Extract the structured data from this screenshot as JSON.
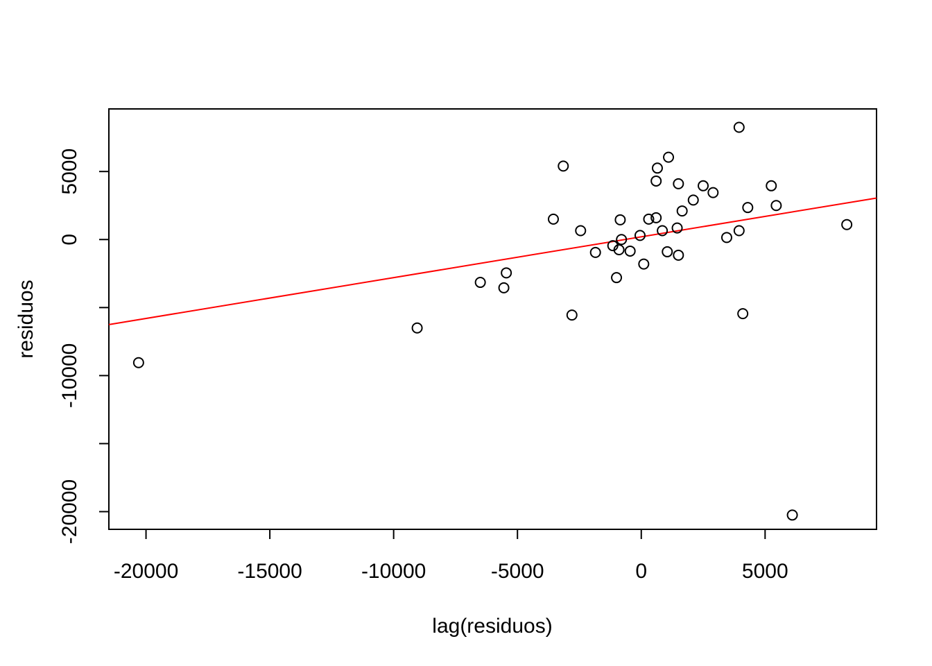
{
  "chart_data": {
    "type": "scatter",
    "title": "",
    "xlabel": "lag(residuos)",
    "ylabel": "residuos",
    "xlim": [
      -21500,
      9500
    ],
    "ylim": [
      -21300,
      9600
    ],
    "x_ticks": [
      -20000,
      -15000,
      -10000,
      -5000,
      0,
      5000
    ],
    "x_tick_labels": [
      "-20000",
      "-15000",
      "-10000",
      "-5000",
      "0",
      "5000"
    ],
    "y_ticks": [
      -20000,
      -15000,
      -10000,
      -5000,
      0,
      5000
    ],
    "y_tick_labels": [
      "-20000",
      "",
      "-10000",
      "",
      "0",
      "5000"
    ],
    "grid": false,
    "legend": "none",
    "points": [
      {
        "x": -20300,
        "y": -9050
      },
      {
        "x": -9050,
        "y": -6500
      },
      {
        "x": -6500,
        "y": -3150
      },
      {
        "x": -5550,
        "y": -3550
      },
      {
        "x": -5450,
        "y": -2450
      },
      {
        "x": -3550,
        "y": 1500
      },
      {
        "x": -3150,
        "y": 5400
      },
      {
        "x": -2800,
        "y": -5550
      },
      {
        "x": -2450,
        "y": 650
      },
      {
        "x": -1850,
        "y": -950
      },
      {
        "x": -1150,
        "y": -450
      },
      {
        "x": -1000,
        "y": -2800
      },
      {
        "x": -900,
        "y": -750
      },
      {
        "x": -850,
        "y": 1450
      },
      {
        "x": -800,
        "y": 0
      },
      {
        "x": -450,
        "y": -850
      },
      {
        "x": -50,
        "y": 300
      },
      {
        "x": 100,
        "y": -1800
      },
      {
        "x": 300,
        "y": 1500
      },
      {
        "x": 600,
        "y": 4300
      },
      {
        "x": 600,
        "y": 1600
      },
      {
        "x": 650,
        "y": 5250
      },
      {
        "x": 850,
        "y": 650
      },
      {
        "x": 1050,
        "y": -900
      },
      {
        "x": 1100,
        "y": 6050
      },
      {
        "x": 1450,
        "y": 850
      },
      {
        "x": 1500,
        "y": 4100
      },
      {
        "x": 1500,
        "y": -1150
      },
      {
        "x": 1650,
        "y": 2100
      },
      {
        "x": 2100,
        "y": 2900
      },
      {
        "x": 2500,
        "y": 3950
      },
      {
        "x": 2900,
        "y": 3450
      },
      {
        "x": 3450,
        "y": 150
      },
      {
        "x": 3950,
        "y": 8250
      },
      {
        "x": 3950,
        "y": 650
      },
      {
        "x": 4100,
        "y": -5450
      },
      {
        "x": 4300,
        "y": 2350
      },
      {
        "x": 5250,
        "y": 3950
      },
      {
        "x": 5450,
        "y": 2500
      },
      {
        "x": 6100,
        "y": -20250
      },
      {
        "x": 8300,
        "y": 1100
      }
    ],
    "fit_line": {
      "color": "#ff0000",
      "intercept": 200,
      "slope": 0.3
    },
    "point_color": "#000000",
    "point_style": "open-circle"
  }
}
